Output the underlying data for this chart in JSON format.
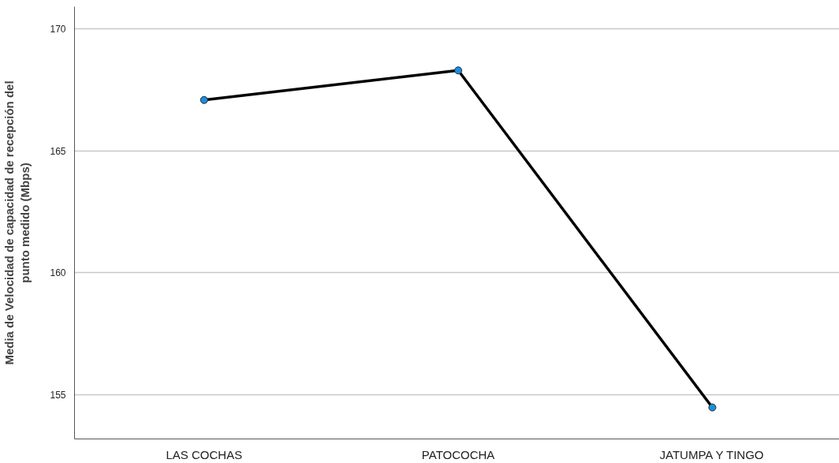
{
  "chart_data": {
    "type": "line",
    "ylabel": "Media de Velocidad de capacidad de recepción del\npunto medido (Mbps)",
    "categories": [
      "LAS COCHAS",
      "PATOCOCHA",
      "JATUMPA Y TINGO"
    ],
    "series": [
      {
        "color": "#000000",
        "values": [
          167.08,
          168.29,
          154.49
        ]
      }
    ],
    "marker": "circle",
    "ylim": [
      153.2,
      170.9
    ],
    "yticks": [
      155,
      160,
      165,
      170
    ],
    "grid": "y"
  }
}
